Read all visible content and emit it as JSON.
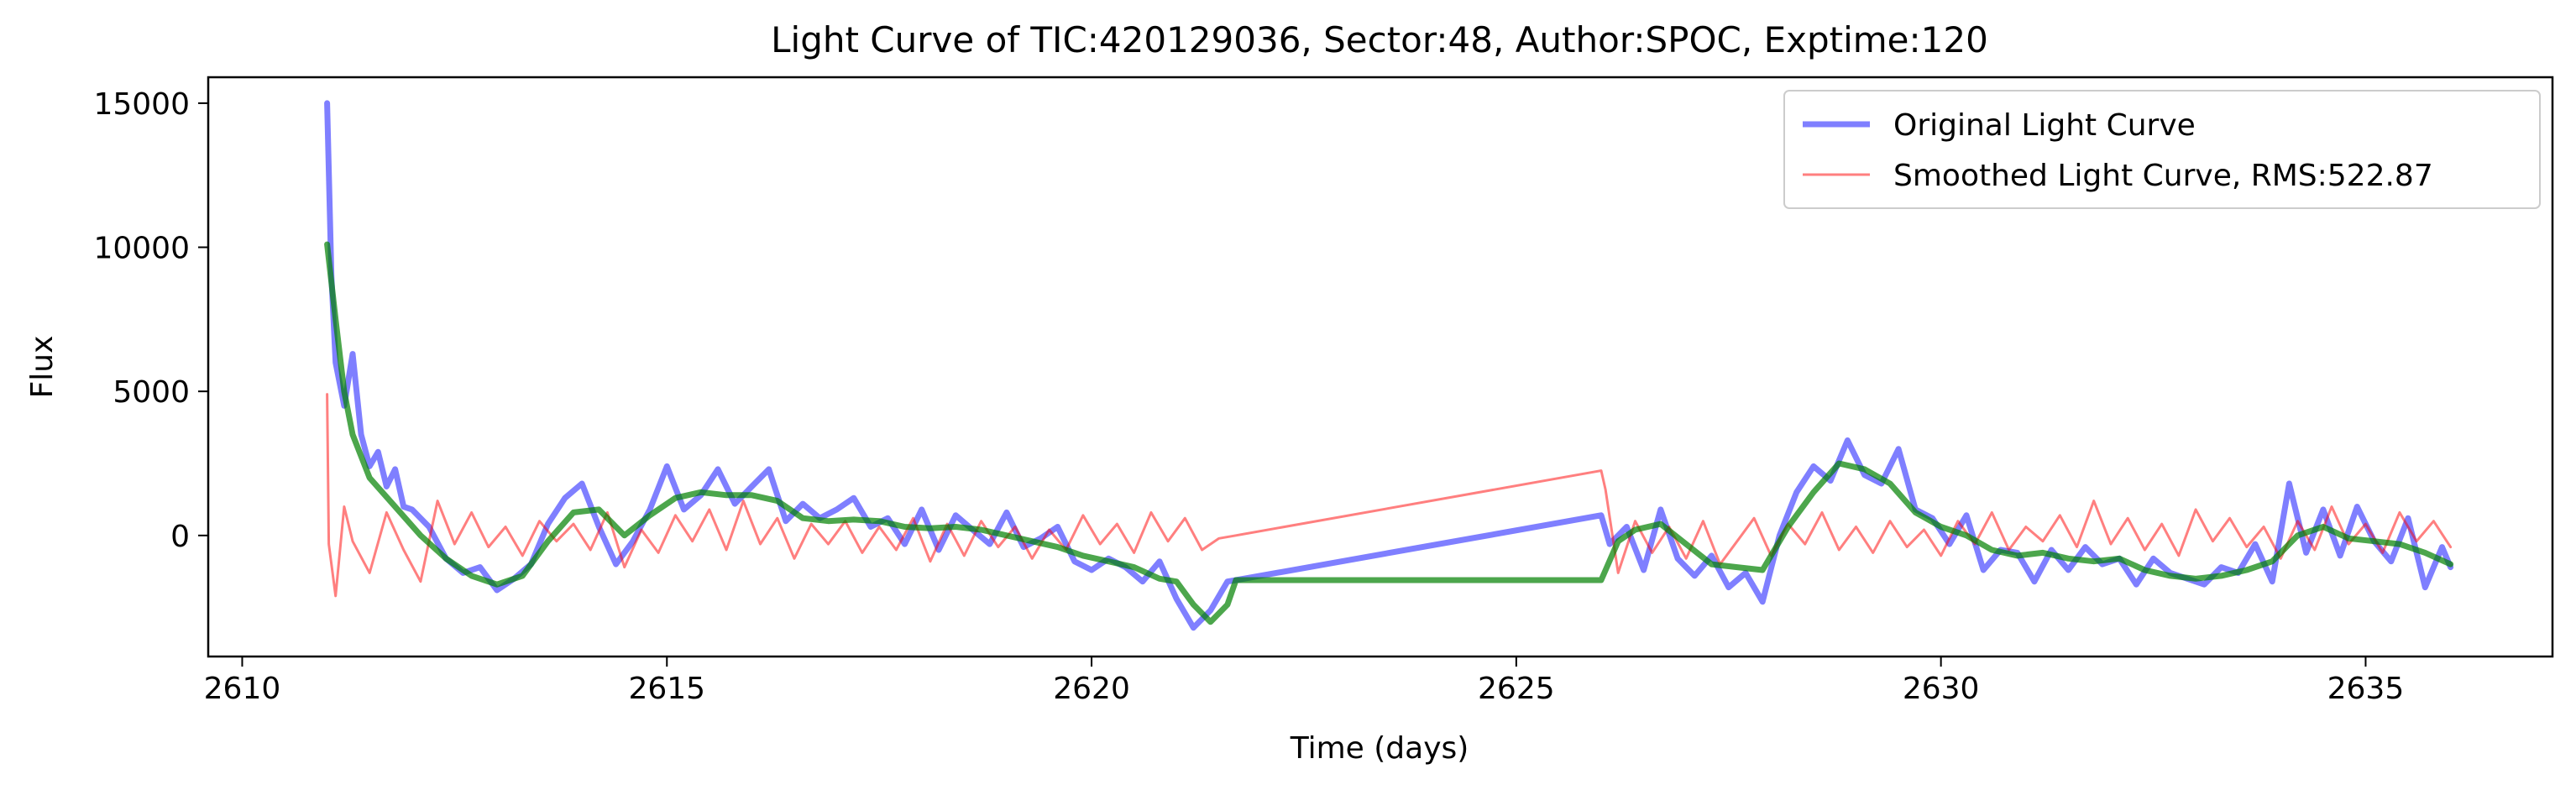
{
  "chart_data": {
    "type": "line",
    "title": "Light Curve of TIC:420129036, Sector:48, Author:SPOC, Exptime:120",
    "xlabel": "Time (days)",
    "ylabel": "Flux",
    "xlim": [
      2609.6,
      2637.2
    ],
    "ylim": [
      -4200,
      15900
    ],
    "xticks": [
      2610,
      2615,
      2620,
      2625,
      2630,
      2635
    ],
    "yticks": [
      0,
      5000,
      10000,
      15000
    ],
    "grid": false,
    "legend_position": "top-right",
    "legend": [
      {
        "label": "Original Light Curve",
        "color": "#0000ff",
        "opacity": 0.5
      },
      {
        "label": "Smoothed Light Curve, RMS:522.87",
        "color": "#ff0000",
        "opacity": 0.5
      }
    ],
    "series": [
      {
        "name": "Original Light Curve",
        "color": "#0000ff",
        "opacity": 0.5,
        "width": 7,
        "x": [
          2611.0,
          2611.05,
          2611.1,
          2611.2,
          2611.3,
          2611.4,
          2611.5,
          2611.6,
          2611.7,
          2611.8,
          2611.9,
          2612.0,
          2612.2,
          2612.4,
          2612.6,
          2612.8,
          2613.0,
          2613.2,
          2613.4,
          2613.6,
          2613.8,
          2614.0,
          2614.2,
          2614.4,
          2614.6,
          2614.8,
          2615.0,
          2615.2,
          2615.4,
          2615.6,
          2615.8,
          2616.0,
          2616.2,
          2616.4,
          2616.6,
          2616.8,
          2617.0,
          2617.2,
          2617.4,
          2617.6,
          2617.8,
          2618.0,
          2618.2,
          2618.4,
          2618.6,
          2618.8,
          2619.0,
          2619.2,
          2619.4,
          2619.6,
          2619.8,
          2620.0,
          2620.2,
          2620.4,
          2620.6,
          2620.8,
          2621.0,
          2621.2,
          2621.4,
          2621.6,
          2621.7,
          2626.0,
          2626.1,
          2626.3,
          2626.5,
          2626.7,
          2626.9,
          2627.1,
          2627.3,
          2627.5,
          2627.7,
          2627.9,
          2628.1,
          2628.3,
          2628.5,
          2628.7,
          2628.9,
          2629.1,
          2629.3,
          2629.5,
          2629.7,
          2629.9,
          2630.1,
          2630.3,
          2630.5,
          2630.7,
          2630.9,
          2631.1,
          2631.3,
          2631.5,
          2631.7,
          2631.9,
          2632.1,
          2632.3,
          2632.5,
          2632.7,
          2632.9,
          2633.1,
          2633.3,
          2633.5,
          2633.7,
          2633.9,
          2634.1,
          2634.3,
          2634.5,
          2634.7,
          2634.9,
          2635.1,
          2635.3,
          2635.5,
          2635.7,
          2635.9,
          2636.0
        ],
        "y": [
          15000,
          9000,
          6000,
          4500,
          6300,
          3500,
          2400,
          2900,
          1700,
          2300,
          1000,
          900,
          300,
          -800,
          -1300,
          -1100,
          -1900,
          -1500,
          -1000,
          400,
          1300,
          1800,
          300,
          -1000,
          -200,
          900,
          2400,
          900,
          1400,
          2300,
          1100,
          1700,
          2300,
          500,
          1100,
          600,
          900,
          1300,
          300,
          600,
          -300,
          900,
          -500,
          700,
          200,
          -300,
          800,
          -400,
          -100,
          300,
          -900,
          -1200,
          -800,
          -1100,
          -1600,
          -900,
          -2200,
          -3200,
          -2600,
          -1600,
          -1550,
          700,
          -300,
          300,
          -1200,
          900,
          -800,
          -1400,
          -700,
          -1800,
          -1300,
          -2300,
          0,
          1500,
          2400,
          1900,
          3300,
          2100,
          1800,
          3000,
          900,
          600,
          -300,
          700,
          -1200,
          -500,
          -600,
          -1600,
          -500,
          -1200,
          -400,
          -1000,
          -800,
          -1700,
          -800,
          -1300,
          -1500,
          -1700,
          -1100,
          -1300,
          -300,
          -1600,
          1800,
          -600,
          900,
          -700,
          1000,
          -200,
          -900,
          600,
          -1800,
          -400,
          -1100
        ]
      },
      {
        "name": "Smoothed Light Curve, RMS:522.87",
        "color": "#ff0000",
        "opacity": 0.5,
        "width": 3,
        "x": [
          2611.0,
          2611.02,
          2611.1,
          2611.2,
          2611.3,
          2611.5,
          2611.7,
          2611.9,
          2612.1,
          2612.3,
          2612.5,
          2612.7,
          2612.9,
          2613.1,
          2613.3,
          2613.5,
          2613.7,
          2613.9,
          2614.1,
          2614.3,
          2614.5,
          2614.7,
          2614.9,
          2615.1,
          2615.3,
          2615.5,
          2615.7,
          2615.9,
          2616.1,
          2616.3,
          2616.5,
          2616.7,
          2616.9,
          2617.1,
          2617.3,
          2617.5,
          2617.7,
          2617.9,
          2618.1,
          2618.3,
          2618.5,
          2618.7,
          2618.9,
          2619.1,
          2619.3,
          2619.5,
          2619.7,
          2619.9,
          2620.1,
          2620.3,
          2620.5,
          2620.7,
          2620.9,
          2621.1,
          2621.3,
          2621.5,
          2621.7,
          2626.0,
          2626.05,
          2626.2,
          2626.4,
          2626.6,
          2626.8,
          2627.0,
          2627.2,
          2627.4,
          2627.6,
          2627.8,
          2628.0,
          2628.2,
          2628.4,
          2628.6,
          2628.8,
          2629.0,
          2629.2,
          2629.4,
          2629.6,
          2629.8,
          2630.0,
          2630.2,
          2630.4,
          2630.6,
          2630.8,
          2631.0,
          2631.2,
          2631.4,
          2631.6,
          2631.8,
          2632.0,
          2632.2,
          2632.4,
          2632.6,
          2632.8,
          2633.0,
          2633.2,
          2633.4,
          2633.6,
          2633.8,
          2634.0,
          2634.2,
          2634.4,
          2634.6,
          2634.8,
          2635.0,
          2635.2,
          2635.4,
          2635.6,
          2635.8,
          2636.0
        ],
        "y": [
          4900,
          -300,
          -2100,
          1000,
          -200,
          -1300,
          800,
          -500,
          -1600,
          1200,
          -300,
          800,
          -400,
          300,
          -700,
          500,
          -200,
          400,
          -500,
          800,
          -1100,
          200,
          -600,
          700,
          -200,
          900,
          -500,
          1200,
          -300,
          600,
          -800,
          400,
          -300,
          500,
          -600,
          300,
          -500,
          600,
          -900,
          400,
          -700,
          500,
          -400,
          300,
          -800,
          200,
          -500,
          700,
          -300,
          400,
          -600,
          800,
          -200,
          600,
          -500,
          -100,
          0,
          2250,
          1600,
          -1300,
          500,
          -600,
          300,
          -800,
          500,
          -1000,
          -200,
          600,
          -700,
          400,
          -300,
          800,
          -500,
          300,
          -600,
          500,
          -400,
          200,
          -700,
          500,
          -300,
          800,
          -500,
          300,
          -200,
          700,
          -400,
          1200,
          -300,
          600,
          -500,
          400,
          -700,
          900,
          -200,
          600,
          -400,
          300,
          -800,
          500,
          -500,
          1000,
          -300,
          400,
          -600,
          800,
          -200,
          500,
          -400
        ]
      },
      {
        "name": "",
        "color": "#008000",
        "opacity": 0.7,
        "width": 7,
        "x": [
          2611.0,
          2611.1,
          2611.2,
          2611.3,
          2611.5,
          2611.8,
          2612.1,
          2612.4,
          2612.7,
          2613.0,
          2613.3,
          2613.6,
          2613.9,
          2614.2,
          2614.5,
          2614.8,
          2615.1,
          2615.4,
          2615.7,
          2616.0,
          2616.3,
          2616.6,
          2616.9,
          2617.2,
          2617.5,
          2617.8,
          2618.1,
          2618.4,
          2618.7,
          2619.0,
          2619.3,
          2619.6,
          2619.9,
          2620.2,
          2620.5,
          2620.8,
          2621.0,
          2621.2,
          2621.4,
          2621.6,
          2621.7,
          2626.0,
          2626.2,
          2626.4,
          2626.7,
          2627.0,
          2627.3,
          2627.6,
          2627.9,
          2628.2,
          2628.5,
          2628.8,
          2629.1,
          2629.4,
          2629.7,
          2630.0,
          2630.3,
          2630.6,
          2630.9,
          2631.2,
          2631.5,
          2631.8,
          2632.1,
          2632.4,
          2632.7,
          2633.0,
          2633.3,
          2633.6,
          2633.9,
          2634.2,
          2634.5,
          2634.8,
          2635.1,
          2635.4,
          2635.7,
          2636.0
        ],
        "y": [
          10100,
          7500,
          5000,
          3500,
          2000,
          1000,
          0,
          -800,
          -1400,
          -1700,
          -1400,
          -200,
          800,
          900,
          0,
          700,
          1300,
          1500,
          1400,
          1400,
          1200,
          600,
          500,
          550,
          500,
          300,
          250,
          300,
          200,
          0,
          -200,
          -400,
          -700,
          -900,
          -1100,
          -1500,
          -1600,
          -2400,
          -3000,
          -2400,
          -1550,
          -1550,
          -200,
          200,
          400,
          -300,
          -1000,
          -1100,
          -1200,
          300,
          1500,
          2500,
          2300,
          1800,
          800,
          300,
          0,
          -500,
          -700,
          -600,
          -800,
          -900,
          -800,
          -1200,
          -1400,
          -1500,
          -1400,
          -1200,
          -900,
          0,
          300,
          -100,
          -200,
          -300,
          -600,
          -1000
        ]
      }
    ]
  }
}
